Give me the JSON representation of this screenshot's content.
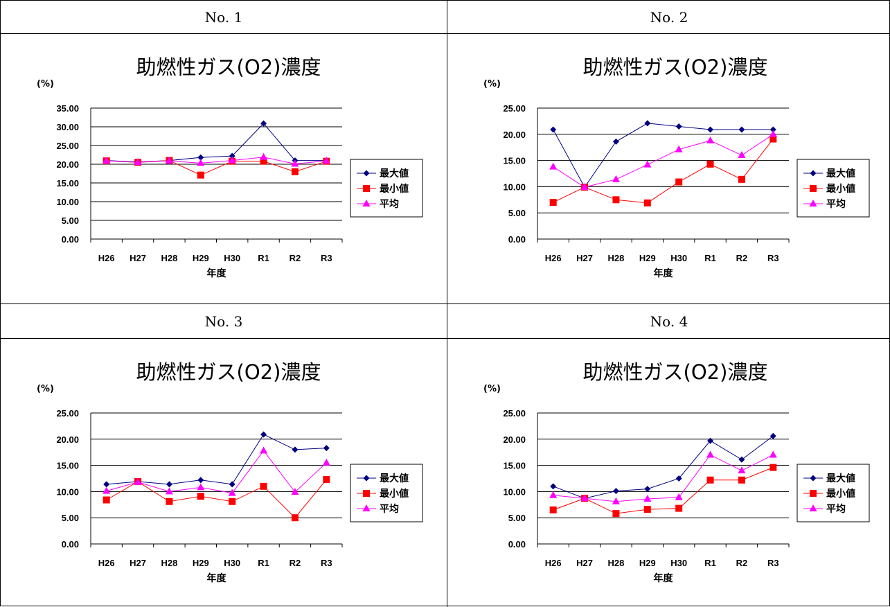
{
  "panels": [
    {
      "header": "No. 1"
    },
    {
      "header": "No. 2"
    },
    {
      "header": "No. 3"
    },
    {
      "header": "No. 4"
    }
  ],
  "colors": {
    "max": "#000080",
    "min": "#ff0000",
    "avg": "#ff00ff"
  },
  "chart_data": [
    {
      "type": "line",
      "title": "助燃性ガス(O2)濃度",
      "unit_label": "(%)",
      "xlabel": "年度",
      "categories": [
        "H26",
        "H27",
        "H28",
        "H29",
        "H30",
        "R1",
        "R2",
        "R3"
      ],
      "ylim": [
        0,
        35
      ],
      "yticks": [
        "0.00",
        "5.00",
        "10.00",
        "15.00",
        "20.00",
        "25.00",
        "30.00",
        "35.00"
      ],
      "grid": true,
      "legend_position": "right",
      "series": [
        {
          "name": "最大値",
          "marker": "diamond",
          "values": [
            21.0,
            20.6,
            21.0,
            21.8,
            22.2,
            30.9,
            21.0,
            21.0
          ]
        },
        {
          "name": "最小値",
          "marker": "square",
          "values": [
            20.9,
            20.5,
            21.0,
            17.1,
            20.8,
            20.8,
            18.0,
            20.8
          ]
        },
        {
          "name": "平均",
          "marker": "triangle",
          "values": [
            20.9,
            20.5,
            20.9,
            20.3,
            21.0,
            21.9,
            20.1,
            20.9
          ]
        }
      ]
    },
    {
      "type": "line",
      "title": "助燃性ガス(O2)濃度",
      "unit_label": "(%)",
      "xlabel": "年度",
      "categories": [
        "H26",
        "H27",
        "H28",
        "H29",
        "H30",
        "R1",
        "R2",
        "R3"
      ],
      "ylim": [
        0,
        25
      ],
      "yticks": [
        "0.00",
        "5.00",
        "10.00",
        "15.00",
        "20.00",
        "25.00"
      ],
      "grid": true,
      "legend_position": "right",
      "series": [
        {
          "name": "最大値",
          "marker": "diamond",
          "values": [
            20.9,
            9.9,
            18.6,
            22.1,
            21.5,
            20.9,
            20.9,
            20.9
          ]
        },
        {
          "name": "最小値",
          "marker": "square",
          "values": [
            7.0,
            9.9,
            7.5,
            6.9,
            10.9,
            14.3,
            11.4,
            19.1
          ]
        },
        {
          "name": "平均",
          "marker": "triangle",
          "values": [
            13.8,
            9.9,
            11.4,
            14.2,
            17.1,
            18.8,
            16.0,
            20.0
          ]
        }
      ]
    },
    {
      "type": "line",
      "title": "助燃性ガス(O2)濃度",
      "unit_label": "(%)",
      "xlabel": "年度",
      "categories": [
        "H26",
        "H27",
        "H28",
        "H29",
        "H30",
        "R1",
        "R2",
        "R3"
      ],
      "ylim": [
        0,
        25
      ],
      "yticks": [
        "0.00",
        "5.00",
        "10.00",
        "15.00",
        "20.00",
        "25.00"
      ],
      "grid": true,
      "legend_position": "right",
      "series": [
        {
          "name": "最大値",
          "marker": "diamond",
          "values": [
            11.4,
            11.9,
            11.4,
            12.2,
            11.4,
            20.9,
            18.0,
            18.3
          ]
        },
        {
          "name": "最小値",
          "marker": "square",
          "values": [
            8.4,
            11.9,
            8.1,
            9.1,
            8.1,
            11.0,
            5.0,
            12.3
          ]
        },
        {
          "name": "平均",
          "marker": "triangle",
          "values": [
            10.1,
            11.8,
            10.0,
            10.8,
            9.7,
            17.8,
            9.9,
            15.5
          ]
        }
      ]
    },
    {
      "type": "line",
      "title": "助燃性ガス(O2)濃度",
      "unit_label": "(%)",
      "xlabel": "年度",
      "categories": [
        "H26",
        "H27",
        "H28",
        "H29",
        "H30",
        "R1",
        "R2",
        "R3"
      ],
      "ylim": [
        0,
        25
      ],
      "yticks": [
        "0.00",
        "5.00",
        "10.00",
        "15.00",
        "20.00",
        "25.00"
      ],
      "grid": true,
      "legend_position": "right",
      "series": [
        {
          "name": "最大値",
          "marker": "diamond",
          "values": [
            11.0,
            8.7,
            10.1,
            10.5,
            12.5,
            19.7,
            16.1,
            20.6
          ]
        },
        {
          "name": "最小値",
          "marker": "square",
          "values": [
            6.5,
            8.7,
            5.8,
            6.6,
            6.8,
            12.2,
            12.2,
            14.6
          ]
        },
        {
          "name": "平均",
          "marker": "triangle",
          "values": [
            9.3,
            8.7,
            8.1,
            8.6,
            8.9,
            17.0,
            14.0,
            17.0
          ]
        }
      ]
    }
  ]
}
